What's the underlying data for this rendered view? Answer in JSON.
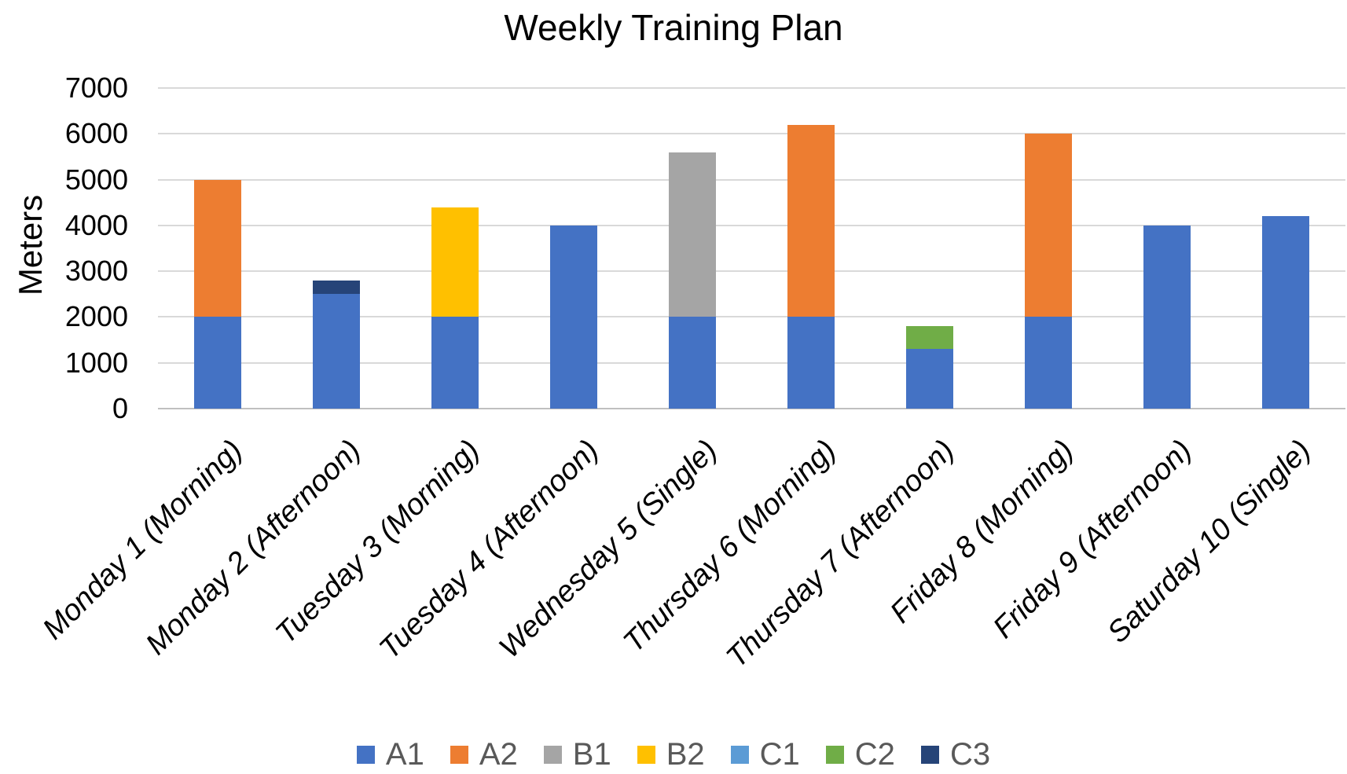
{
  "chart_data": {
    "type": "bar",
    "stacked": true,
    "title": "Weekly Training Plan",
    "xlabel": "",
    "ylabel": "Meters",
    "ylim": [
      0,
      7000
    ],
    "yticks": [
      0,
      1000,
      2000,
      3000,
      4000,
      5000,
      6000,
      7000
    ],
    "grid": true,
    "legend_position": "bottom",
    "gridline_color": "#D9D9D9",
    "legend_text_color": "#595959",
    "categories": [
      "Monday 1 (Morning)",
      "Monday 2 (Afternoon)",
      "Tuesday 3 (Morning)",
      "Tuesday 4 (Afternoon)",
      "Wednesday 5 (Single)",
      "Thursday 6 (Morning)",
      "Thursday 7 (Afternoon)",
      "Friday 8 (Morning)",
      "Friday 9 (Afternoon)",
      "Saturday 10 (Single)"
    ],
    "series": [
      {
        "name": "A1",
        "color": "#4472C4",
        "values": [
          2000,
          2500,
          2000,
          4000,
          2000,
          2000,
          1300,
          2000,
          4000,
          4200
        ]
      },
      {
        "name": "A2",
        "color": "#ED7D31",
        "values": [
          3000,
          0,
          0,
          0,
          0,
          4200,
          0,
          4000,
          0,
          0
        ]
      },
      {
        "name": "B1",
        "color": "#A5A5A5",
        "values": [
          0,
          0,
          0,
          0,
          3600,
          0,
          0,
          0,
          0,
          0
        ]
      },
      {
        "name": "B2",
        "color": "#FFC000",
        "values": [
          0,
          0,
          2400,
          0,
          0,
          0,
          0,
          0,
          0,
          0
        ]
      },
      {
        "name": "C1",
        "color": "#5B9BD5",
        "values": [
          0,
          0,
          0,
          0,
          0,
          0,
          0,
          0,
          0,
          0
        ]
      },
      {
        "name": "C2",
        "color": "#70AD47",
        "values": [
          0,
          0,
          0,
          0,
          0,
          0,
          500,
          0,
          0,
          0
        ]
      },
      {
        "name": "C3",
        "color": "#264478",
        "values": [
          0,
          300,
          0,
          0,
          0,
          0,
          0,
          0,
          0,
          0
        ]
      }
    ],
    "bar_totals": [
      5000,
      2800,
      4400,
      4000,
      5600,
      6200,
      1800,
      6000,
      4000,
      4200
    ]
  }
}
